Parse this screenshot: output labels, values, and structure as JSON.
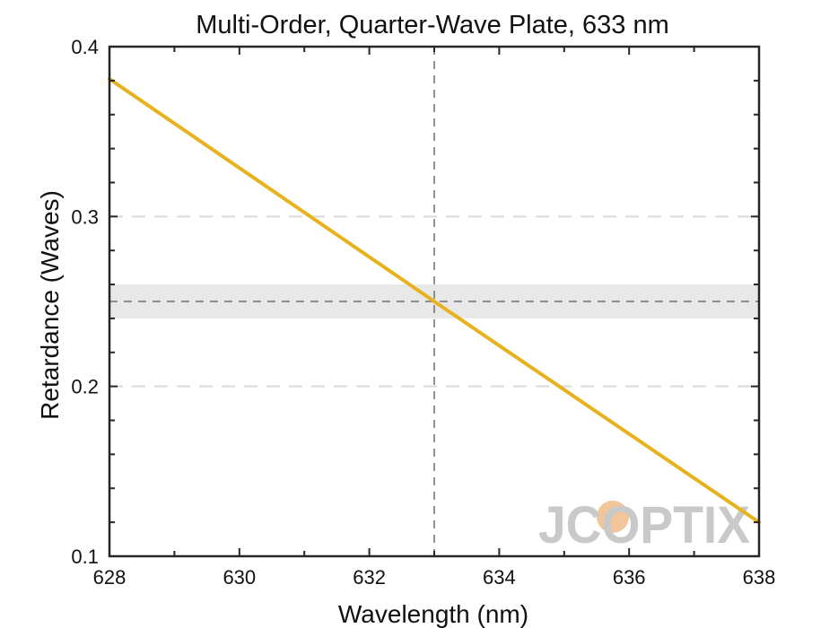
{
  "chart_data": {
    "type": "line",
    "title": "Multi-Order, Quarter-Wave Plate, 633 nm",
    "xlabel": "Wavelength (nm)",
    "ylabel": "Retardance (Waves)",
    "xlim": [
      628,
      638
    ],
    "ylim": [
      0.1,
      0.4
    ],
    "x_ticks": [
      628,
      630,
      632,
      634,
      636,
      638
    ],
    "y_ticks": [
      0.1,
      0.2,
      0.3,
      0.4
    ],
    "x_tick_labels": [
      "628",
      "630",
      "632",
      "634",
      "636",
      "638"
    ],
    "y_tick_labels": [
      "0.1",
      "0.2",
      "0.3",
      "0.4"
    ],
    "series": [
      {
        "name": "Retardance",
        "color": "#e8b21f",
        "x": [
          628,
          633,
          638
        ],
        "y": [
          0.381,
          0.25,
          0.12
        ]
      }
    ],
    "target_retardance": 0.25,
    "tolerance_band": [
      0.24,
      0.26
    ],
    "center_wavelength": 633,
    "y_grid_dashed": [
      0.2,
      0.3
    ],
    "band_color": "#e8e8e8",
    "grid_color": "#d9d9d9",
    "reference_line_color": "#6f6f6f"
  },
  "watermark": {
    "text": "JCOPTIX",
    "color": "#c9c9c9",
    "accent_color": "#f2c59a"
  }
}
